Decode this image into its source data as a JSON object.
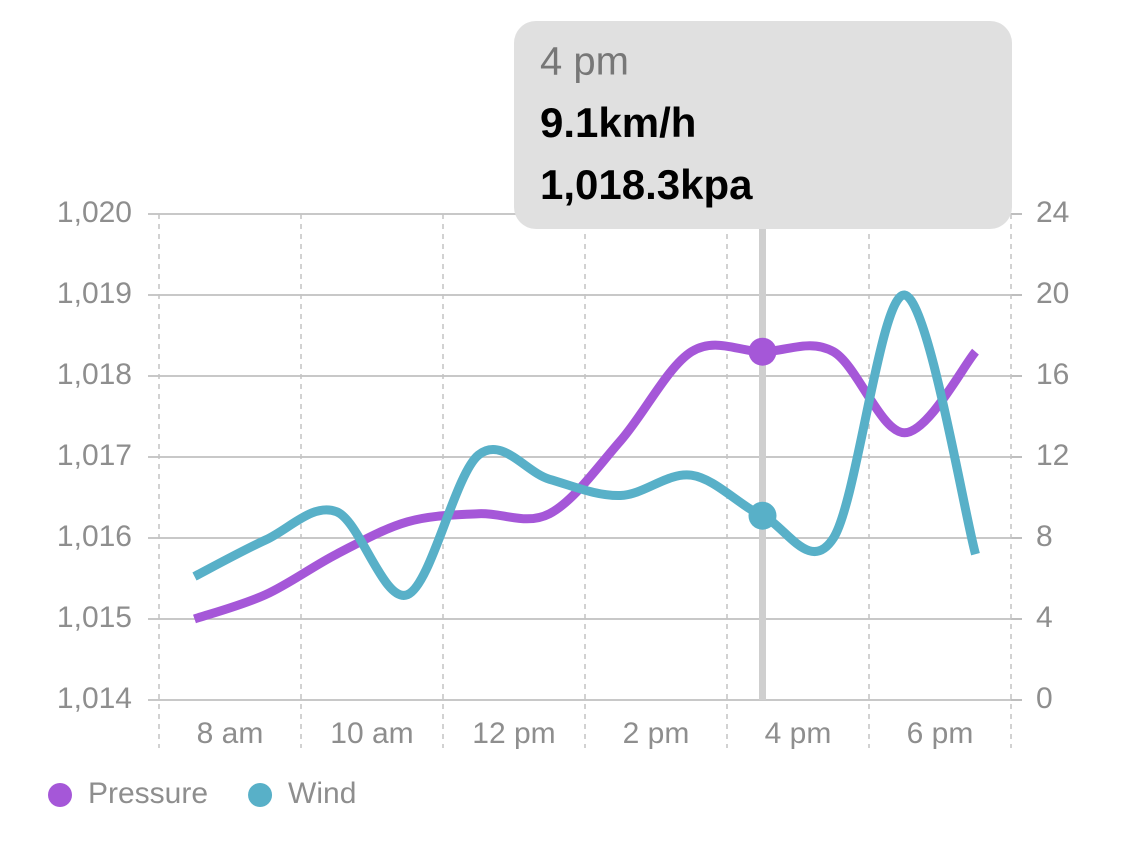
{
  "chart_data": {
    "type": "line",
    "categories": [
      "8 am",
      null,
      "10 am",
      null,
      "12 pm",
      null,
      "2 pm",
      null,
      "4 pm",
      null,
      "6 pm",
      null
    ],
    "series": [
      {
        "name": "Pressure",
        "color": "#a557d8",
        "values": [
          1015.0,
          1015.3,
          1015.8,
          1016.2,
          1016.3,
          1016.3,
          1017.2,
          1018.3,
          1018.3,
          1018.3,
          1017.3,
          1018.3
        ]
      },
      {
        "name": "Wind",
        "color": "#58b0c8",
        "axis": "y2",
        "values": [
          6.1,
          7.9,
          9.3,
          5.2,
          12.1,
          10.9,
          10.1,
          11.1,
          9.1,
          8.0,
          20.0,
          7.2
        ]
      }
    ],
    "ylim": [
      1014,
      1020
    ],
    "yticks": [
      {
        "value": 1014,
        "label": "1,014"
      },
      {
        "value": 1015,
        "label": "1,015"
      },
      {
        "value": 1016,
        "label": "1,016"
      },
      {
        "value": 1017,
        "label": "1,017"
      },
      {
        "value": 1018,
        "label": "1,018"
      },
      {
        "value": 1019,
        "label": "1,019"
      },
      {
        "value": 1020,
        "label": "1,020"
      }
    ],
    "y2lim": [
      0,
      24
    ],
    "y2ticks": [
      0,
      4,
      8,
      12,
      16,
      20,
      24
    ],
    "grid": true,
    "legend": "bottom-left",
    "tooltip": {
      "title": "4 pm",
      "lines": [
        "9.1km/h",
        "1,018.3kpa"
      ]
    }
  }
}
